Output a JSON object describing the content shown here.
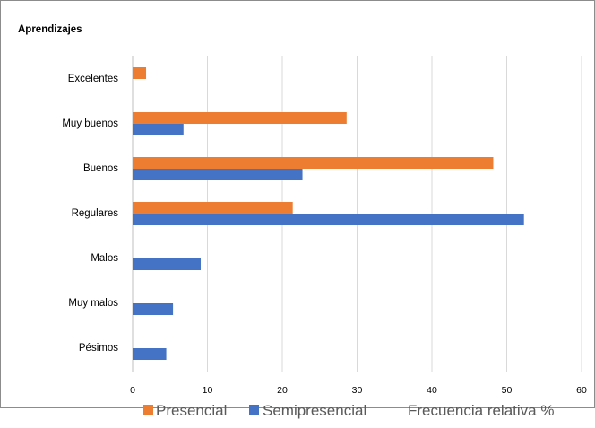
{
  "chart_data": {
    "type": "bar",
    "orientation": "horizontal",
    "title": "Aprendizajes",
    "xlabel": "Frecuencia relativa %",
    "categories": [
      "Excelentes",
      "Muy buenos",
      "Buenos",
      "Regulares",
      "Malos",
      "Muy malos",
      "Pésimos"
    ],
    "series": [
      {
        "name": "Presencial",
        "color": "#ed7d31",
        "values": [
          1.8,
          28.6,
          48.2,
          21.4,
          0,
          0,
          0
        ]
      },
      {
        "name": "Semipresencial",
        "color": "#4472c4",
        "values": [
          0,
          6.8,
          22.7,
          52.3,
          9.1,
          5.4,
          4.5
        ]
      }
    ],
    "xlim": [
      0,
      60
    ],
    "xticks": [
      0,
      10,
      20,
      30,
      40,
      50,
      60
    ],
    "grid": true,
    "legend_position": "bottom"
  }
}
